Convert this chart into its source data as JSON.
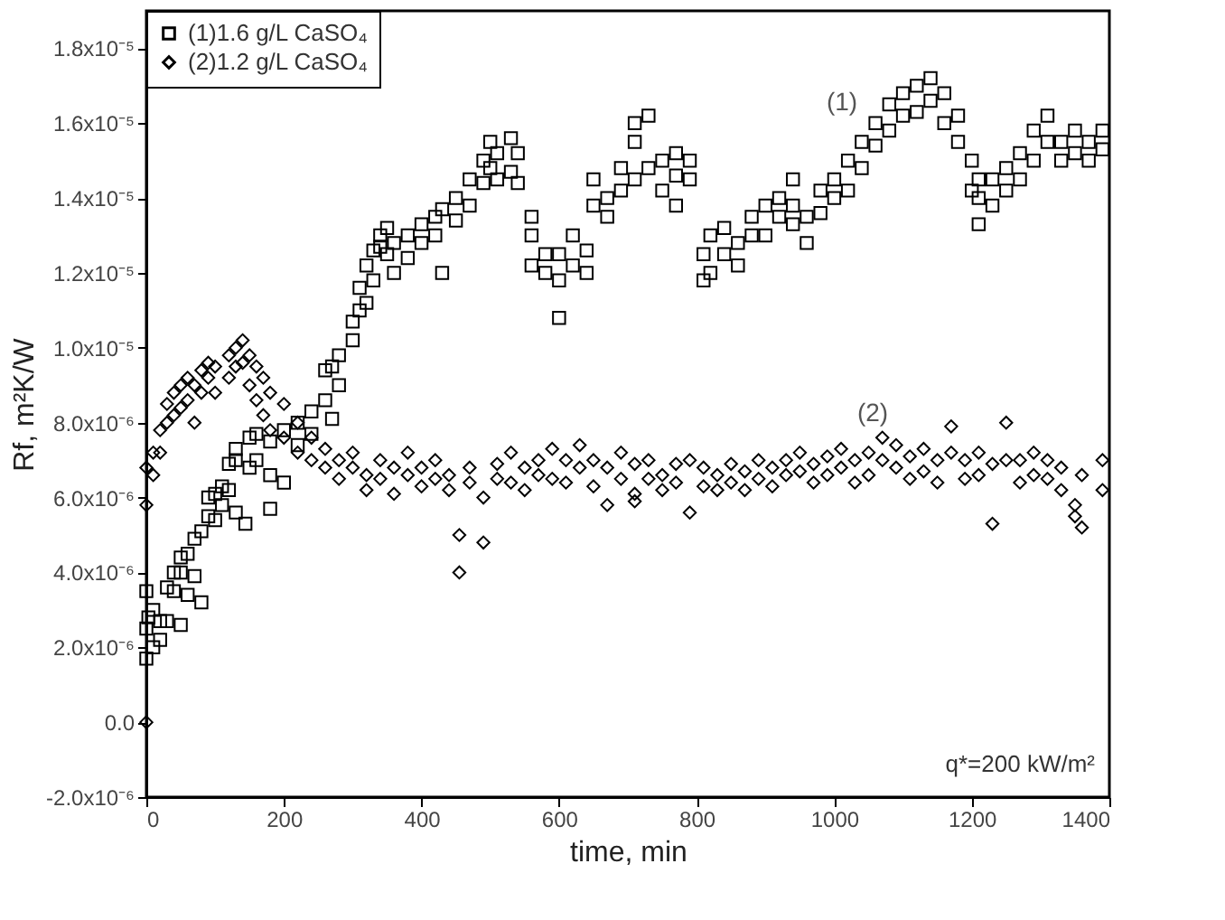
{
  "chart_data": {
    "type": "scatter",
    "xlabel": "time, min",
    "ylabel": "Rf, m²K/W",
    "xlim": [
      0,
      1400
    ],
    "ylim": [
      -2e-06,
      1.9e-05
    ],
    "xticks": [
      0,
      200,
      400,
      600,
      800,
      1000,
      1200,
      1400
    ],
    "yticks": [
      {
        "value": -2e-06,
        "label": "-2.0x10⁻⁶"
      },
      {
        "value": 0,
        "label": "0.0"
      },
      {
        "value": 2e-06,
        "label": "2.0x10⁻⁶"
      },
      {
        "value": 4e-06,
        "label": "4.0x10⁻⁶"
      },
      {
        "value": 6e-06,
        "label": "6.0x10⁻⁶"
      },
      {
        "value": 8e-06,
        "label": "8.0x10⁻⁶"
      },
      {
        "value": 1e-05,
        "label": "1.0x10⁻⁵"
      },
      {
        "value": 1.2e-05,
        "label": "1.2x10⁻⁵"
      },
      {
        "value": 1.4e-05,
        "label": "1.4x10⁻⁵"
      },
      {
        "value": 1.6e-05,
        "label": "1.6x10⁻⁵"
      },
      {
        "value": 1.8e-05,
        "label": "1.8x10⁻⁵"
      }
    ],
    "grid": false,
    "legend": "top left",
    "annotations": [
      "(1)",
      "(2)",
      "q*=200 kW/m²"
    ],
    "series": [
      {
        "name": "(1)1.6 g/L CaSO₄",
        "color": "#000000",
        "marker": "square",
        "x": [
          0,
          0,
          0,
          3,
          10,
          10,
          20,
          20,
          30,
          30,
          40,
          40,
          50,
          50,
          50,
          60,
          60,
          70,
          70,
          80,
          80,
          90,
          90,
          100,
          100,
          110,
          110,
          120,
          120,
          130,
          130,
          130,
          150,
          150,
          144,
          160,
          160,
          180,
          180,
          180,
          200,
          200,
          220,
          220,
          240,
          240,
          260,
          260,
          270,
          270,
          280,
          280,
          300,
          300,
          310,
          310,
          320,
          320,
          330,
          330,
          340,
          340,
          350,
          350,
          360,
          360,
          380,
          380,
          400,
          400,
          420,
          420,
          430,
          430,
          450,
          450,
          470,
          470,
          490,
          490,
          500,
          500,
          510,
          510,
          530,
          530,
          540,
          540,
          560,
          560,
          560,
          580,
          580,
          600,
          600,
          600,
          620,
          620,
          640,
          640,
          650,
          650,
          670,
          670,
          690,
          690,
          710,
          710,
          710,
          730,
          730,
          750,
          750,
          770,
          770,
          770,
          790,
          790,
          810,
          810,
          820,
          820,
          840,
          840,
          860,
          860,
          880,
          880,
          900,
          900,
          920,
          920,
          940,
          940,
          940,
          960,
          960,
          980,
          980,
          1000,
          1000,
          1020,
          1020,
          1040,
          1040,
          1060,
          1060,
          1080,
          1080,
          1100,
          1100,
          1120,
          1120,
          1140,
          1140,
          1160,
          1160,
          1180,
          1180,
          1200,
          1200,
          1210,
          1210,
          1210,
          1230,
          1230,
          1250,
          1250,
          1270,
          1270,
          1290,
          1290,
          1310,
          1310,
          1330,
          1330,
          1350,
          1350,
          1370,
          1370,
          1390,
          1390
        ],
        "values": [
          1.7e-06,
          2.5e-06,
          3.5e-06,
          2.8e-06,
          2e-06,
          3e-06,
          2.7e-06,
          2.2e-06,
          3.6e-06,
          2.7e-06,
          3.5e-06,
          4e-06,
          2.6e-06,
          4e-06,
          4.4e-06,
          4.5e-06,
          3.4e-06,
          4.9e-06,
          3.9e-06,
          5.1e-06,
          3.2e-06,
          5.5e-06,
          6e-06,
          6.1e-06,
          5.4e-06,
          6.3e-06,
          5.8e-06,
          6.9e-06,
          6.2e-06,
          7.3e-06,
          5.6e-06,
          7e-06,
          7.6e-06,
          6.8e-06,
          5.3e-06,
          7.7e-06,
          7e-06,
          7.5e-06,
          6.6e-06,
          5.7e-06,
          7.8e-06,
          6.4e-06,
          7.4e-06,
          8e-06,
          7.7e-06,
          8.3e-06,
          8.6e-06,
          9.4e-06,
          9.5e-06,
          8.1e-06,
          9.8e-06,
          9e-06,
          1.02e-05,
          1.07e-05,
          1.1e-05,
          1.16e-05,
          1.22e-05,
          1.12e-05,
          1.18e-05,
          1.26e-05,
          1.27e-05,
          1.3e-05,
          1.25e-05,
          1.32e-05,
          1.28e-05,
          1.2e-05,
          1.3e-05,
          1.24e-05,
          1.33e-05,
          1.28e-05,
          1.35e-05,
          1.3e-05,
          1.2e-05,
          1.37e-05,
          1.4e-05,
          1.34e-05,
          1.45e-05,
          1.38e-05,
          1.5e-05,
          1.44e-05,
          1.48e-05,
          1.55e-05,
          1.52e-05,
          1.45e-05,
          1.56e-05,
          1.47e-05,
          1.52e-05,
          1.44e-05,
          1.35e-05,
          1.3e-05,
          1.22e-05,
          1.25e-05,
          1.2e-05,
          1.18e-05,
          1.25e-05,
          1.08e-05,
          1.3e-05,
          1.22e-05,
          1.2e-05,
          1.26e-05,
          1.38e-05,
          1.45e-05,
          1.4e-05,
          1.35e-05,
          1.42e-05,
          1.48e-05,
          1.45e-05,
          1.55e-05,
          1.6e-05,
          1.48e-05,
          1.62e-05,
          1.42e-05,
          1.5e-05,
          1.38e-05,
          1.46e-05,
          1.52e-05,
          1.45e-05,
          1.5e-05,
          1.25e-05,
          1.18e-05,
          1.3e-05,
          1.2e-05,
          1.25e-05,
          1.32e-05,
          1.28e-05,
          1.22e-05,
          1.3e-05,
          1.35e-05,
          1.38e-05,
          1.3e-05,
          1.4e-05,
          1.35e-05,
          1.38e-05,
          1.33e-05,
          1.45e-05,
          1.35e-05,
          1.28e-05,
          1.42e-05,
          1.36e-05,
          1.45e-05,
          1.4e-05,
          1.5e-05,
          1.42e-05,
          1.55e-05,
          1.48e-05,
          1.6e-05,
          1.54e-05,
          1.65e-05,
          1.58e-05,
          1.68e-05,
          1.62e-05,
          1.7e-05,
          1.63e-05,
          1.66e-05,
          1.72e-05,
          1.68e-05,
          1.6e-05,
          1.62e-05,
          1.55e-05,
          1.5e-05,
          1.42e-05,
          1.4e-05,
          1.45e-05,
          1.33e-05,
          1.38e-05,
          1.45e-05,
          1.48e-05,
          1.42e-05,
          1.52e-05,
          1.45e-05,
          1.58e-05,
          1.5e-05,
          1.62e-05,
          1.55e-05,
          1.55e-05,
          1.5e-05,
          1.52e-05,
          1.58e-05,
          1.55e-05,
          1.5e-05,
          1.53e-05,
          1.58e-05
        ]
      },
      {
        "name": "(2)1.2 g/L CaSO₄",
        "color": "#000000",
        "marker": "diamond",
        "x": [
          0,
          0,
          0,
          10,
          10,
          20,
          20,
          30,
          30,
          40,
          40,
          50,
          50,
          60,
          60,
          70,
          70,
          80,
          80,
          90,
          90,
          100,
          100,
          120,
          120,
          130,
          130,
          140,
          140,
          150,
          150,
          160,
          160,
          170,
          170,
          180,
          180,
          200,
          200,
          220,
          220,
          240,
          240,
          260,
          260,
          280,
          280,
          300,
          300,
          320,
          320,
          340,
          340,
          360,
          360,
          380,
          380,
          400,
          400,
          420,
          420,
          440,
          440,
          455,
          455,
          470,
          470,
          490,
          490,
          510,
          510,
          530,
          530,
          550,
          550,
          570,
          570,
          590,
          590,
          610,
          610,
          630,
          630,
          650,
          650,
          670,
          670,
          690,
          690,
          710,
          710,
          710,
          730,
          730,
          750,
          750,
          770,
          770,
          790,
          790,
          810,
          810,
          830,
          830,
          850,
          850,
          870,
          870,
          890,
          890,
          910,
          910,
          930,
          930,
          950,
          950,
          970,
          970,
          990,
          990,
          1010,
          1010,
          1030,
          1030,
          1050,
          1050,
          1070,
          1070,
          1090,
          1090,
          1110,
          1110,
          1130,
          1130,
          1150,
          1150,
          1170,
          1170,
          1190,
          1190,
          1210,
          1210,
          1230,
          1230,
          1250,
          1250,
          1270,
          1270,
          1290,
          1290,
          1310,
          1310,
          1330,
          1330,
          1350,
          1350,
          1360,
          1360,
          1390,
          1390
        ],
        "values": [
          0,
          5.8e-06,
          6.8e-06,
          7.2e-06,
          6.6e-06,
          7.8e-06,
          7.2e-06,
          8e-06,
          8.5e-06,
          8.2e-06,
          8.8e-06,
          9e-06,
          8.4e-06,
          8.6e-06,
          9.2e-06,
          9e-06,
          8e-06,
          9.4e-06,
          8.8e-06,
          9.2e-06,
          9.6e-06,
          9.5e-06,
          8.8e-06,
          9.8e-06,
          9.2e-06,
          1e-05,
          9.5e-06,
          1.02e-05,
          9.6e-06,
          9.8e-06,
          9e-06,
          9.5e-06,
          8.6e-06,
          9.2e-06,
          8.2e-06,
          8.8e-06,
          7.8e-06,
          8.5e-06,
          7.6e-06,
          8e-06,
          7.2e-06,
          7.6e-06,
          7e-06,
          7.3e-06,
          6.8e-06,
          7e-06,
          6.5e-06,
          6.8e-06,
          7.2e-06,
          6.6e-06,
          6.2e-06,
          7e-06,
          6.5e-06,
          6.8e-06,
          6.1e-06,
          7.2e-06,
          6.6e-06,
          6.8e-06,
          6.3e-06,
          7e-06,
          6.5e-06,
          6.6e-06,
          6.2e-06,
          5e-06,
          4e-06,
          6.8e-06,
          6.4e-06,
          4.8e-06,
          6e-06,
          6.9e-06,
          6.5e-06,
          7.2e-06,
          6.4e-06,
          6.8e-06,
          6.2e-06,
          7e-06,
          6.6e-06,
          7.3e-06,
          6.5e-06,
          7e-06,
          6.4e-06,
          6.8e-06,
          7.4e-06,
          7e-06,
          6.3e-06,
          5.8e-06,
          6.8e-06,
          7.2e-06,
          6.5e-06,
          6.9e-06,
          6.1e-06,
          5.9e-06,
          7e-06,
          6.5e-06,
          6.6e-06,
          6.2e-06,
          6.9e-06,
          6.4e-06,
          7e-06,
          5.6e-06,
          6.8e-06,
          6.3e-06,
          6.6e-06,
          6.2e-06,
          6.9e-06,
          6.4e-06,
          6.7e-06,
          6.2e-06,
          7e-06,
          6.5e-06,
          6.8e-06,
          6.3e-06,
          7e-06,
          6.6e-06,
          7.2e-06,
          6.7e-06,
          6.9e-06,
          6.4e-06,
          7.1e-06,
          6.6e-06,
          7.3e-06,
          6.8e-06,
          7e-06,
          6.4e-06,
          7.2e-06,
          6.6e-06,
          7.6e-06,
          7e-06,
          7.4e-06,
          6.8e-06,
          7.1e-06,
          6.5e-06,
          7.3e-06,
          6.7e-06,
          7e-06,
          6.4e-06,
          7.9e-06,
          7.2e-06,
          7e-06,
          6.5e-06,
          7.2e-06,
          6.6e-06,
          5.3e-06,
          6.9e-06,
          8e-06,
          7e-06,
          7e-06,
          6.4e-06,
          7.2e-06,
          6.6e-06,
          7e-06,
          6.5e-06,
          6.8e-06,
          6.2e-06,
          5.8e-06,
          5.5e-06,
          5.2e-06,
          6.6e-06,
          6.2e-06,
          7e-06
        ]
      }
    ]
  }
}
